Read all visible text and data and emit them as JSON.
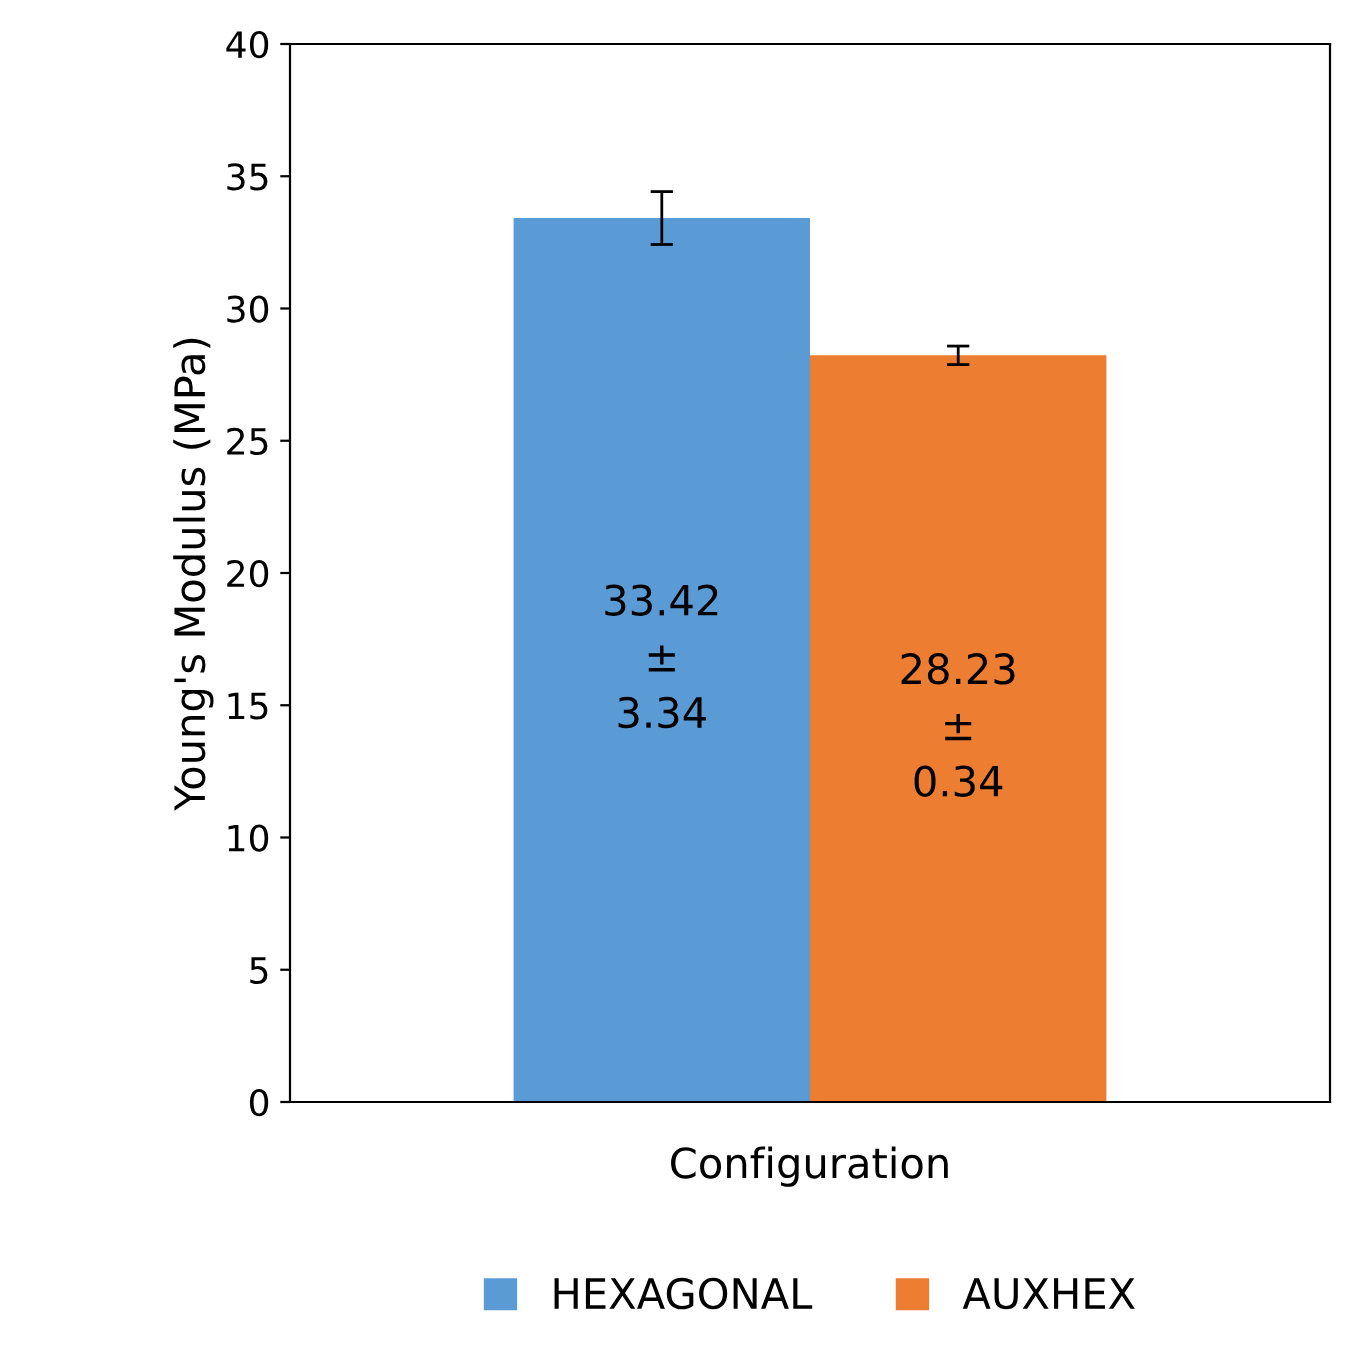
{
  "chart_data": {
    "type": "bar",
    "xlabel": "Configuration",
    "ylabel": "Young's Modulus (MPa)",
    "categories": [
      null
    ],
    "series": [
      {
        "name": "HEXAGONAL",
        "color": "#5b9bd5",
        "values": [
          33.42
        ],
        "errors": [
          1.0
        ],
        "value_labels": [
          "33.42\n±\n3.34"
        ]
      },
      {
        "name": "AUXHEX",
        "color": "#ed7d31",
        "values": [
          28.23
        ],
        "errors": [
          0.35
        ],
        "value_labels": [
          "28.23\n±\n0.34"
        ]
      }
    ],
    "ylim": [
      0,
      40
    ],
    "yticks": [
      0,
      5,
      10,
      15,
      20,
      25,
      30,
      35,
      40
    ],
    "grid": false,
    "legend": "bottom"
  }
}
